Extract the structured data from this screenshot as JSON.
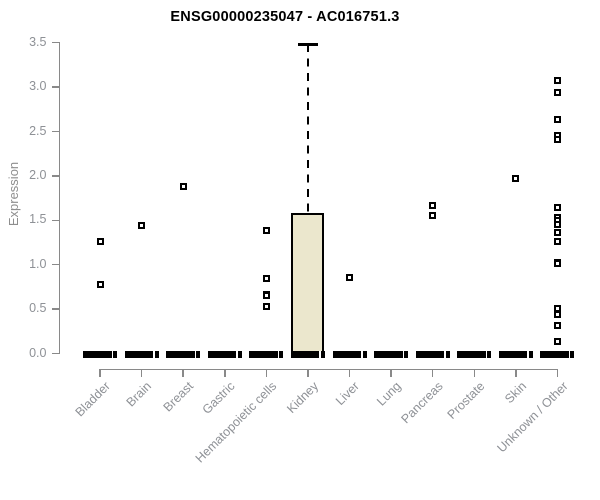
{
  "chart_data": {
    "type": "boxplot",
    "title": "ENSG00000235047 - AC016751.3",
    "ylabel": "Expression",
    "xlabel": "",
    "ylim": [
      0,
      3.5
    ],
    "y_ticks": [
      "0.0",
      "0.5",
      "1.0",
      "1.5",
      "2.0",
      "2.5",
      "3.0",
      "3.5"
    ],
    "grid": false,
    "legend": false,
    "whisker_style": "dashed",
    "outlier_marker": "open-square",
    "colors": {
      "box_fill": "#ebe7cd",
      "box_border": "#000000",
      "axis": "#898989",
      "tick_label": "#8e9196",
      "title": "#000000",
      "points": "#000000"
    },
    "categories": [
      "Bladder",
      "Brain",
      "Breast",
      "Gastric",
      "Hematopoietic cells",
      "Kidney",
      "Liver",
      "Lung",
      "Pancreas",
      "Prostate",
      "Skin",
      "Unknown / Other"
    ],
    "series": [
      {
        "category": "Bladder",
        "q1": 0,
        "median": 0,
        "q3": 0,
        "whisker_low": 0,
        "whisker_high": 0,
        "outliers": [
          1.26,
          0.78
        ]
      },
      {
        "category": "Brain",
        "q1": 0,
        "median": 0,
        "q3": 0,
        "whisker_low": 0,
        "whisker_high": 0,
        "outliers": [
          1.44
        ]
      },
      {
        "category": "Breast",
        "q1": 0,
        "median": 0,
        "q3": 0,
        "whisker_low": 0,
        "whisker_high": 0,
        "outliers": [
          1.88
        ]
      },
      {
        "category": "Gastric",
        "q1": 0,
        "median": 0,
        "q3": 0,
        "whisker_low": 0,
        "whisker_high": 0,
        "outliers": []
      },
      {
        "category": "Hematopoietic cells",
        "q1": 0,
        "median": 0,
        "q3": 0,
        "whisker_low": 0,
        "whisker_high": 0,
        "outliers": [
          1.39,
          0.85,
          0.67,
          0.65,
          0.53
        ]
      },
      {
        "category": "Kidney",
        "q1": 0,
        "median": 0,
        "q3": 1.58,
        "whisker_low": 0,
        "whisker_high": 3.48,
        "outliers": []
      },
      {
        "category": "Liver",
        "q1": 0,
        "median": 0,
        "q3": 0,
        "whisker_low": 0,
        "whisker_high": 0,
        "outliers": [
          0.86
        ]
      },
      {
        "category": "Lung",
        "q1": 0,
        "median": 0,
        "q3": 0,
        "whisker_low": 0,
        "whisker_high": 0,
        "outliers": []
      },
      {
        "category": "Pancreas",
        "q1": 0,
        "median": 0,
        "q3": 0,
        "whisker_low": 0,
        "whisker_high": 0,
        "outliers": [
          1.67,
          1.55
        ]
      },
      {
        "category": "Prostate",
        "q1": 0,
        "median": 0,
        "q3": 0,
        "whisker_low": 0,
        "whisker_high": 0,
        "outliers": []
      },
      {
        "category": "Skin",
        "q1": 0,
        "median": 0,
        "q3": 0,
        "whisker_low": 0,
        "whisker_high": 0,
        "outliers": [
          1.97
        ]
      },
      {
        "category": "Unknown / Other",
        "q1": 0,
        "median": 0,
        "q3": 0,
        "whisker_low": 0,
        "whisker_high": 0,
        "outliers": [
          3.07,
          2.94,
          2.64,
          2.45,
          2.41,
          1.64,
          1.53,
          1.5,
          1.45,
          1.36,
          1.26,
          1.03,
          1.01,
          0.51,
          0.44,
          0.32,
          0.14
        ]
      }
    ]
  }
}
